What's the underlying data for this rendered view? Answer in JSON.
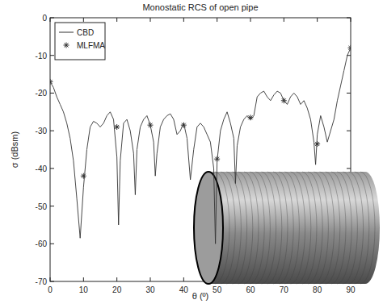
{
  "chart_data": {
    "type": "line",
    "title": "Monostatic RCS of open pipe",
    "x_label": "θ (º)",
    "y_label": "σ (dBsm)",
    "xlim": [
      0,
      90
    ],
    "ylim": [
      -70,
      0
    ],
    "xticks": [
      0,
      10,
      20,
      30,
      40,
      50,
      60,
      70,
      80,
      90
    ],
    "yticks": [
      -70,
      -60,
      -50,
      -40,
      -30,
      -20,
      -10,
      0
    ],
    "grid": false,
    "legend": "upper left",
    "series": [
      {
        "name": "CBD",
        "type": "line",
        "color": "#333333",
        "marker": "none",
        "line_style": "solid",
        "x": [
          0,
          1,
          2,
          3,
          4,
          5,
          6,
          7,
          8,
          9,
          10,
          11,
          12,
          13,
          14,
          15,
          16,
          17,
          18,
          19,
          20,
          20.5,
          21,
          22,
          23,
          24,
          25,
          25.5,
          26,
          27,
          28,
          29,
          30,
          31,
          31.5,
          32,
          33,
          34,
          35,
          36,
          37,
          38,
          39,
          40,
          41,
          42,
          43,
          44,
          45,
          46,
          47,
          48,
          49,
          49.5,
          50,
          51,
          52,
          53,
          54,
          55,
          55.5,
          56,
          57,
          58,
          59,
          60,
          61,
          62,
          63,
          64,
          65,
          66,
          67,
          68,
          69,
          70,
          71,
          72,
          73,
          74,
          75,
          76,
          77,
          78,
          79,
          79.5,
          80,
          81,
          82,
          83,
          84,
          85,
          86,
          87,
          88,
          89,
          90
        ],
        "values": [
          -17,
          -18.5,
          -21,
          -23,
          -25,
          -28,
          -32,
          -38,
          -48,
          -58.5,
          -45,
          -35,
          -29,
          -27.5,
          -28,
          -29,
          -28,
          -26,
          -25,
          -27,
          -37,
          -55,
          -38,
          -28,
          -27,
          -30,
          -36,
          -47,
          -35,
          -29,
          -27,
          -26,
          -28.5,
          -33,
          -42,
          -36,
          -29,
          -27,
          -26,
          -25.5,
          -27,
          -31,
          -30,
          -28,
          -32,
          -43,
          -35,
          -29,
          -28,
          -29,
          -31,
          -33,
          -40,
          -60,
          -38,
          -30,
          -27,
          -25,
          -28,
          -32,
          -44,
          -34,
          -29,
          -27,
          -26,
          -27,
          -26,
          -21,
          -20,
          -19.5,
          -21,
          -22,
          -20.5,
          -19.5,
          -20,
          -22,
          -23,
          -21,
          -20,
          -21,
          -23,
          -22,
          -24,
          -27,
          -33,
          -39,
          -31,
          -26,
          -29,
          -33,
          -30,
          -27,
          -22,
          -18,
          -14,
          -10,
          -8
        ]
      },
      {
        "name": "MLFMA",
        "type": "scatter",
        "color": "#333333",
        "marker": "star",
        "line_style": "none",
        "x": [
          0,
          10,
          20,
          30,
          40,
          50,
          60,
          70,
          80,
          90
        ],
        "values": [
          -17,
          -42,
          -29,
          -28.5,
          -28.5,
          -37.5,
          -26.5,
          -22,
          -33.5,
          -8
        ]
      }
    ]
  }
}
